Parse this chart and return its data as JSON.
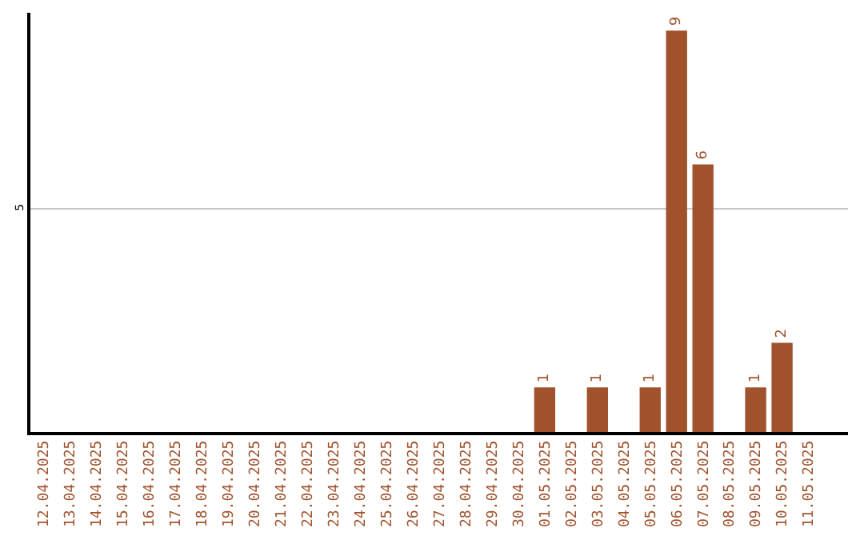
{
  "chart_data": {
    "type": "bar",
    "categories": [
      "12.04.2025",
      "13.04.2025",
      "14.04.2025",
      "15.04.2025",
      "16.04.2025",
      "17.04.2025",
      "18.04.2025",
      "19.04.2025",
      "20.04.2025",
      "21.04.2025",
      "22.04.2025",
      "23.04.2025",
      "24.04.2025",
      "25.04.2025",
      "26.04.2025",
      "27.04.2025",
      "28.04.2025",
      "29.04.2025",
      "30.04.2025",
      "01.05.2025",
      "02.05.2025",
      "03.05.2025",
      "04.05.2025",
      "05.05.2025",
      "06.05.2025",
      "07.05.2025",
      "08.05.2025",
      "09.05.2025",
      "10.05.2025",
      "11.05.2025"
    ],
    "values": [
      null,
      null,
      null,
      null,
      null,
      null,
      null,
      null,
      null,
      null,
      null,
      null,
      null,
      null,
      null,
      null,
      null,
      null,
      null,
      1,
      null,
      1,
      null,
      1,
      9,
      6,
      null,
      1,
      2,
      null
    ],
    "color": "#a0522d",
    "ylim": [
      0,
      9.4
    ],
    "yticks": [
      5
    ],
    "grid": "y",
    "data_labels": true
  }
}
